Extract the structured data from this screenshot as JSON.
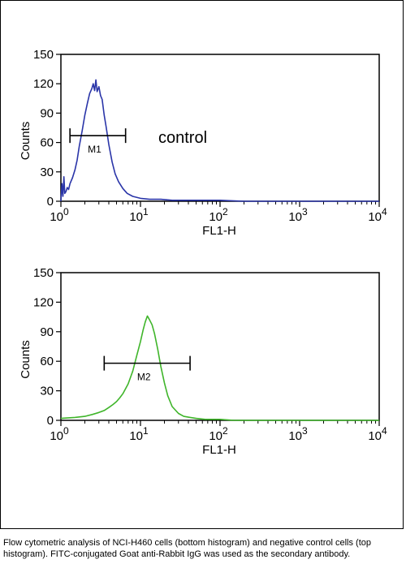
{
  "caption": "Flow cytometric analysis of NCI-H460 cells (bottom histogram) and negative control cells (top histogram). FITC-conjugated Goat anti-Rabbit IgG was used as the secondary antibody.",
  "colors": {
    "top_series": "#2a35a8",
    "bottom_series": "#3fb52a",
    "marker": "#000000"
  },
  "chart_data": [
    {
      "type": "line",
      "xscale": "log",
      "xlim": [
        1,
        10000
      ],
      "ylim": [
        0,
        150
      ],
      "xlabel": "FL1-H",
      "ylabel": "Counts",
      "y_ticks": [
        0,
        30,
        60,
        90,
        120,
        150
      ],
      "x_ticks": [
        {
          "value": 1,
          "base": "10",
          "exp": "0"
        },
        {
          "value": 10,
          "base": "10",
          "exp": "1"
        },
        {
          "value": 100,
          "base": "10",
          "exp": "2"
        },
        {
          "value": 1000,
          "base": "10",
          "exp": "3"
        },
        {
          "value": 10000,
          "base": "10",
          "exp": "4"
        }
      ],
      "annotation": "control",
      "marker": {
        "label": "M1",
        "x_start": 1.3,
        "x_end": 6.5,
        "y": 67
      },
      "series": [
        {
          "x": [
            1.0,
            1.03,
            1.06,
            1.09,
            1.12,
            1.16,
            1.2,
            1.25,
            1.3,
            1.4,
            1.5,
            1.6,
            1.7,
            1.85,
            2.0,
            2.15,
            2.3,
            2.45,
            2.55,
            2.65,
            2.75,
            2.85,
            3.0,
            3.15,
            3.3,
            3.5,
            3.7,
            4.0,
            4.4,
            4.8,
            5.3,
            6.0,
            6.8,
            8.0,
            10.0,
            13.0,
            18.0,
            25.0,
            40.0,
            60.0,
            100.0,
            200.0,
            500.0,
            1000.0,
            3000.0,
            10000.0
          ],
          "y": [
            0,
            18,
            5,
            25,
            8,
            10,
            14,
            12,
            18,
            24,
            32,
            42,
            56,
            72,
            88,
            100,
            110,
            115,
            120,
            113,
            124,
            112,
            117,
            108,
            104,
            88,
            76,
            58,
            40,
            28,
            20,
            13,
            8,
            5,
            3,
            2,
            2,
            1,
            1,
            1,
            1,
            0,
            0,
            0,
            0,
            0
          ]
        }
      ]
    },
    {
      "type": "line",
      "xscale": "log",
      "xlim": [
        1,
        10000
      ],
      "ylim": [
        0,
        150
      ],
      "xlabel": "FL1-H",
      "ylabel": "Counts",
      "y_ticks": [
        0,
        30,
        60,
        90,
        120,
        150
      ],
      "x_ticks": [
        {
          "value": 1,
          "base": "10",
          "exp": "0"
        },
        {
          "value": 10,
          "base": "10",
          "exp": "1"
        },
        {
          "value": 100,
          "base": "10",
          "exp": "2"
        },
        {
          "value": 1000,
          "base": "10",
          "exp": "3"
        },
        {
          "value": 10000,
          "base": "10",
          "exp": "4"
        }
      ],
      "annotation": "",
      "marker": {
        "label": "M2",
        "x_start": 3.5,
        "x_end": 42.0,
        "y": 58
      },
      "series": [
        {
          "x": [
            1.0,
            1.5,
            2.0,
            2.5,
            3.0,
            3.5,
            4.0,
            4.5,
            5.0,
            5.5,
            6.0,
            7.0,
            8.0,
            9.0,
            10.0,
            10.8,
            11.5,
            12.2,
            13.0,
            14.0,
            15.0,
            16.5,
            18.0,
            20.0,
            22.0,
            25.0,
            30.0,
            35.0,
            42.0,
            50.0,
            65.0,
            80.0,
            100.0,
            150.0,
            300.0,
            1000.0,
            3000.0,
            10000.0
          ],
          "y": [
            2,
            3,
            4,
            6,
            8,
            10,
            13,
            16,
            19,
            23,
            27,
            37,
            50,
            66,
            80,
            92,
            100,
            106,
            102,
            97,
            88,
            72,
            55,
            38,
            25,
            14,
            7,
            4,
            3,
            2,
            1,
            1,
            1,
            0,
            0,
            0,
            0,
            0
          ]
        }
      ]
    }
  ]
}
